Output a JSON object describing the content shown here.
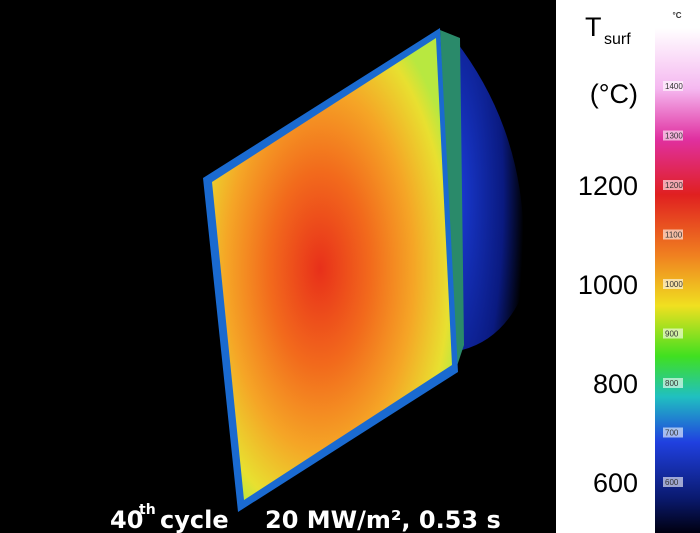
{
  "image": {
    "caption": {
      "ordinal": "40",
      "suffix": "th",
      "word": "cycle",
      "conditions": "20 MW/m², 0.53 s"
    }
  },
  "axis": {
    "symbol": "T",
    "subscript": "surf",
    "unit": "(°C)",
    "labels": [
      "1200",
      "1000",
      "800",
      "600"
    ]
  },
  "colorbar": {
    "unit": "°C",
    "labels": [
      "1400",
      "1300",
      "1200",
      "1100",
      "1000",
      "900",
      "800",
      "700",
      "600"
    ]
  }
}
